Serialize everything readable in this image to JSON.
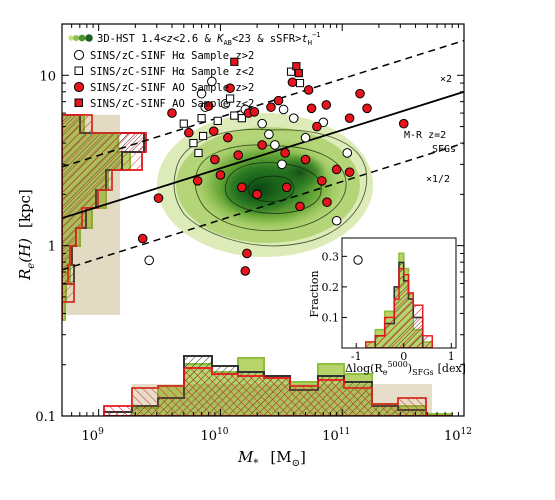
{
  "chart_data": {
    "type": "scatter",
    "xlabel": "M",
    "xlabel_sub": "*",
    "xunit": "[M",
    "xunit_sub": "⊙",
    "xunit_close": "]",
    "ylabel": "R",
    "ylabel_sub": "e",
    "ylabel_arg": "(H)",
    "yunit": "[kpc]",
    "xscale": "log",
    "yscale": "log",
    "xlim": [
      500000000,
      1000000000000
    ],
    "ylim": [
      0.1,
      20
    ],
    "xticks": [
      {
        "value": 1000000000,
        "label": "10",
        "exp": "9"
      },
      {
        "value": 10000000000,
        "label": "10",
        "exp": "10"
      },
      {
        "value": 100000000000,
        "label": "10",
        "exp": "11"
      },
      {
        "value": 1000000000000,
        "label": "10",
        "exp": "12"
      }
    ],
    "yticks": [
      {
        "value": 0.1,
        "label": "0.1"
      },
      {
        "value": 1,
        "label": "1"
      },
      {
        "value": 10,
        "label": "10"
      }
    ],
    "legend": [
      {
        "label": "3D-HST 1.4<z<2.6 & K_AB<23 & sSFR>t_H^-1",
        "marker": "density"
      },
      {
        "label": "SINS/zC-SINF Hα Sample z>2",
        "marker": "open-circle"
      },
      {
        "label": "SINS/zC-SINF Hα Sample z<2",
        "marker": "open-square"
      },
      {
        "label": "SINS/zC-SINF AO Sample z>2",
        "marker": "red-circle"
      },
      {
        "label": "SINS/zC-SINF AO Sample z<2",
        "marker": "red-square"
      }
    ],
    "lines": [
      {
        "name": "M-R z=2 SFGs",
        "label": "M-R z=2",
        "label2": "SFGs",
        "style": "solid",
        "points": [
          [
            500000000,
            1.45
          ],
          [
            1000000000000,
            8.0
          ]
        ]
      },
      {
        "name": "x2",
        "label": "×2",
        "style": "dashed",
        "points": [
          [
            500000000,
            2.9
          ],
          [
            1000000000000,
            16.0
          ]
        ]
      },
      {
        "name": "x1/2",
        "label": "×1/2",
        "style": "dashed",
        "points": [
          [
            500000000,
            0.72
          ],
          [
            1000000000000,
            4.0
          ]
        ]
      }
    ],
    "series": [
      {
        "name": "SINS/zC-SINF Hα Sample z>2",
        "marker": "open-circle",
        "points": [
          [
            7000000000,
            7.8
          ],
          [
            7500000000,
            6.5
          ],
          [
            8500000000,
            9.2
          ],
          [
            11000000000,
            6.8
          ],
          [
            16000000000,
            6.3
          ],
          [
            22000000000,
            5.2
          ],
          [
            25000000000,
            4.5
          ],
          [
            28000000000,
            3.9
          ],
          [
            33000000000,
            6.3
          ],
          [
            40000000000,
            5.6
          ],
          [
            50000000000,
            4.3
          ],
          [
            70000000000,
            5.3
          ],
          [
            110000000000,
            3.5
          ],
          [
            90000000000,
            1.4
          ],
          [
            32000000000,
            3.0
          ],
          [
            2600000000,
            0.82
          ]
        ]
      },
      {
        "name": "SINS/zC-SINF Hα Sample z<2",
        "marker": "open-square",
        "points": [
          [
            5000000000,
            5.2
          ],
          [
            6000000000,
            4.0
          ],
          [
            7000000000,
            5.6
          ],
          [
            7200000000,
            4.4
          ],
          [
            9500000000,
            5.4
          ],
          [
            12000000000,
            7.3
          ],
          [
            13000000000,
            5.8
          ],
          [
            15000000000,
            5.6
          ],
          [
            38000000000,
            10.5
          ],
          [
            45000000000,
            9.0
          ],
          [
            6600000000,
            3.5
          ]
        ]
      },
      {
        "name": "SINS/zC-SINF AO Sample z>2",
        "marker": "red-circle",
        "points": [
          [
            4000000000,
            6.0
          ],
          [
            5500000000,
            4.6
          ],
          [
            6500000000,
            2.4
          ],
          [
            3100000000,
            1.9
          ],
          [
            8000000000,
            6.6
          ],
          [
            9000000000,
            3.2
          ],
          [
            10000000000,
            2.6
          ],
          [
            11500000000,
            4.3
          ],
          [
            12000000000,
            8.4
          ],
          [
            14000000000,
            3.4
          ],
          [
            15000000000,
            2.2
          ],
          [
            17000000000,
            6.0
          ],
          [
            19000000000,
            6.1
          ],
          [
            20000000000,
            2.0
          ],
          [
            22000000000,
            3.9
          ],
          [
            26000000000,
            6.5
          ],
          [
            30000000000,
            7.1
          ],
          [
            34000000000,
            3.5
          ],
          [
            35000000000,
            2.2
          ],
          [
            39000000000,
            9.1
          ],
          [
            50000000000,
            3.2
          ],
          [
            53000000000,
            8.2
          ],
          [
            56000000000,
            6.4
          ],
          [
            62000000000,
            5.0
          ],
          [
            74000000000,
            6.7
          ],
          [
            90000000000,
            2.8
          ],
          [
            115000000000,
            2.7
          ],
          [
            140000000000,
            7.8
          ],
          [
            160000000000,
            6.4
          ],
          [
            115000000000,
            5.6
          ],
          [
            16000000000,
            0.71
          ],
          [
            16500000000,
            0.9
          ],
          [
            2300000000,
            1.1
          ],
          [
            45000000000,
            1.7
          ],
          [
            68000000000,
            2.4
          ],
          [
            75000000000,
            1.8
          ],
          [
            8800000000,
            4.7
          ],
          [
            320000000000,
            5.2
          ]
        ]
      },
      {
        "name": "SINS/zC-SINF AO Sample z<2",
        "marker": "red-square",
        "points": [
          [
            13000000000,
            12.0
          ],
          [
            42000000000,
            11.3
          ],
          [
            44000000000,
            10.3
          ]
        ]
      }
    ],
    "inset": {
      "xlabel": "Δlog(R",
      "xlabel_sub": "e",
      "xlabel_sup": "5000",
      "xlabel_close": ")",
      "xlabel_sub2": "SFGs",
      "xlabel_unit": "[dex]",
      "ylabel": "Fraction",
      "xlim": [
        -1.3,
        1.1
      ],
      "ylim": [
        0,
        0.36
      ],
      "xticks": [
        {
          "value": -1,
          "label": "-1"
        },
        {
          "value": 0,
          "label": "0"
        },
        {
          "value": 1,
          "label": "1"
        }
      ],
      "yticks": [
        {
          "value": 0.1,
          "label": "0.1"
        },
        {
          "value": 0.2,
          "label": "0.2"
        },
        {
          "value": 0.3,
          "label": "0.3"
        }
      ]
    },
    "colors": {
      "accent_red": "#e8141d",
      "green_light": "#c0db79",
      "green_dark": "#125c1a",
      "hist_green": "#8cbf3c",
      "hist_black": "#333333"
    }
  }
}
